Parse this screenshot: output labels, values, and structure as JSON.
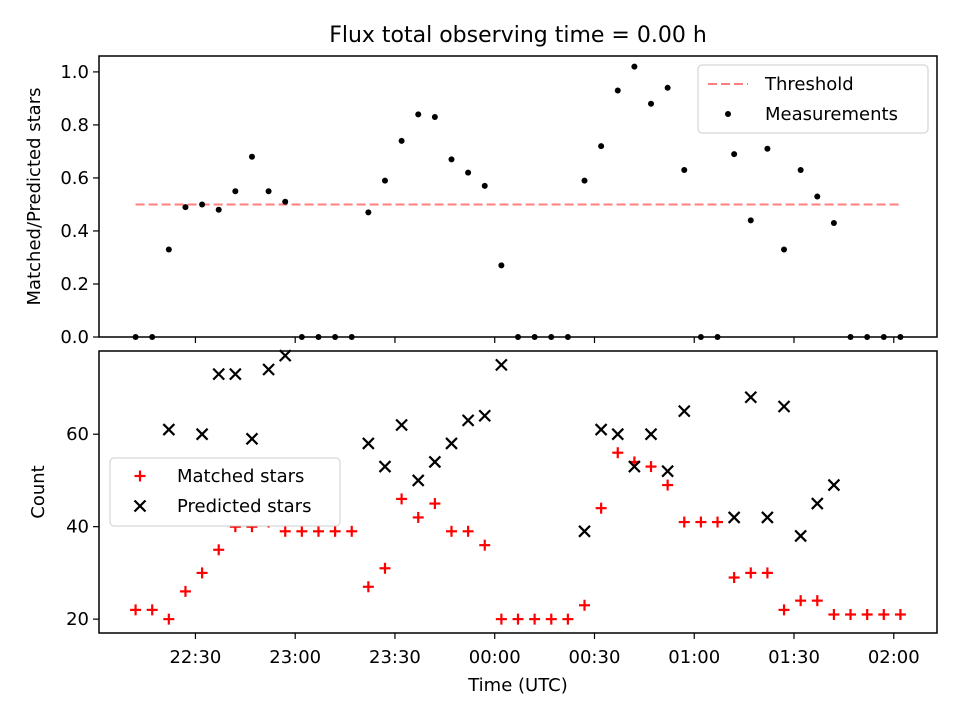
{
  "chart_data": [
    {
      "type": "scatter",
      "title": "Flux total observing time = 0.00 h",
      "xlabel": "",
      "ylabel": "Matched/Predicted stars",
      "ylim": [
        0,
        1.06
      ],
      "yticks": [
        "0.0",
        "0.2",
        "0.4",
        "0.6",
        "0.8",
        "1.0"
      ],
      "legend_position": "top-right",
      "threshold": {
        "name": "Threshold",
        "value": 0.5,
        "x_range": [
          "22:12",
          "02:02"
        ],
        "color": "#ff7f7f"
      },
      "series": [
        {
          "name": "Measurements",
          "color": "#000000",
          "x": [
            "22:12",
            "22:17",
            "22:22",
            "22:27",
            "22:32",
            "22:37",
            "22:42",
            "22:47",
            "22:52",
            "22:57",
            "23:02",
            "23:07",
            "23:12",
            "23:17",
            "23:22",
            "23:27",
            "23:32",
            "23:37",
            "23:42",
            "23:47",
            "23:52",
            "23:57",
            "00:02",
            "00:07",
            "00:12",
            "00:17",
            "00:22",
            "00:27",
            "00:32",
            "00:37",
            "00:42",
            "00:47",
            "00:52",
            "00:57",
            "01:02",
            "01:07",
            "01:12",
            "01:17",
            "01:22",
            "01:27",
            "01:32",
            "01:37",
            "01:42",
            "01:47",
            "01:52",
            "01:57",
            "02:02"
          ],
          "y": [
            0,
            0,
            0.33,
            0.49,
            0.5,
            0.48,
            0.55,
            0.68,
            0.55,
            0.51,
            0,
            0,
            0,
            0,
            0.47,
            0.59,
            0.74,
            0.84,
            0.83,
            0.67,
            0.62,
            0.57,
            0.27,
            0,
            0,
            0,
            0,
            0.59,
            0.72,
            0.93,
            1.02,
            0.88,
            0.94,
            0.63,
            0,
            0,
            0.69,
            0.44,
            0.71,
            0.33,
            0.63,
            0.53,
            0.43,
            0,
            0,
            0,
            0
          ]
        }
      ]
    },
    {
      "type": "scatter",
      "title": "",
      "xlabel": "Time (UTC)",
      "ylabel": "Count",
      "xlim": [
        "22:01",
        "02:13"
      ],
      "ylim": [
        17,
        78
      ],
      "yticks": [
        "20",
        "40",
        "60"
      ],
      "xticks": [
        "22:30",
        "23:00",
        "23:30",
        "00:00",
        "00:30",
        "01:00",
        "01:30",
        "02:00"
      ],
      "legend_position": "center-left",
      "series": [
        {
          "name": "Matched stars",
          "marker": "plus",
          "color": "#ff0000",
          "x": [
            "22:12",
            "22:17",
            "22:22",
            "22:27",
            "22:32",
            "22:37",
            "22:42",
            "22:47",
            "22:52",
            "22:57",
            "23:02",
            "23:07",
            "23:12",
            "23:17",
            "23:22",
            "23:27",
            "23:32",
            "23:37",
            "23:42",
            "23:47",
            "23:52",
            "23:57",
            "00:02",
            "00:07",
            "00:12",
            "00:17",
            "00:22",
            "00:27",
            "00:32",
            "00:37",
            "00:42",
            "00:47",
            "00:52",
            "00:57",
            "01:02",
            "01:07",
            "01:12",
            "01:17",
            "01:22",
            "01:27",
            "01:32",
            "01:37",
            "01:42",
            "01:47",
            "01:52",
            "01:57",
            "02:02"
          ],
          "y": [
            22,
            22,
            20,
            26,
            30,
            35,
            40,
            40,
            41,
            39,
            39,
            39,
            39,
            39,
            27,
            31,
            46,
            42,
            45,
            39,
            39,
            36,
            20,
            20,
            20,
            20,
            20,
            23,
            44,
            56,
            54,
            53,
            49,
            41,
            41,
            41,
            29,
            30,
            30,
            22,
            24,
            24,
            21,
            21,
            21,
            21,
            21
          ]
        },
        {
          "name": "Predicted stars",
          "marker": "x",
          "color": "#000000",
          "x": [
            "22:22",
            "22:32",
            "22:37",
            "22:42",
            "22:47",
            "22:52",
            "22:57",
            "23:22",
            "23:27",
            "23:32",
            "23:37",
            "23:42",
            "23:47",
            "23:52",
            "23:57",
            "00:02",
            "00:27",
            "00:32",
            "00:37",
            "00:42",
            "00:47",
            "00:52",
            "00:57",
            "01:12",
            "01:17",
            "01:22",
            "01:27",
            "01:32",
            "01:37",
            "01:42"
          ],
          "y": [
            61,
            60,
            73,
            73,
            59,
            74,
            77,
            58,
            53,
            62,
            50,
            54,
            58,
            63,
            64,
            75,
            39,
            61,
            60,
            53,
            60,
            52,
            65,
            42,
            68,
            42,
            66,
            38,
            45,
            49
          ]
        }
      ]
    }
  ]
}
